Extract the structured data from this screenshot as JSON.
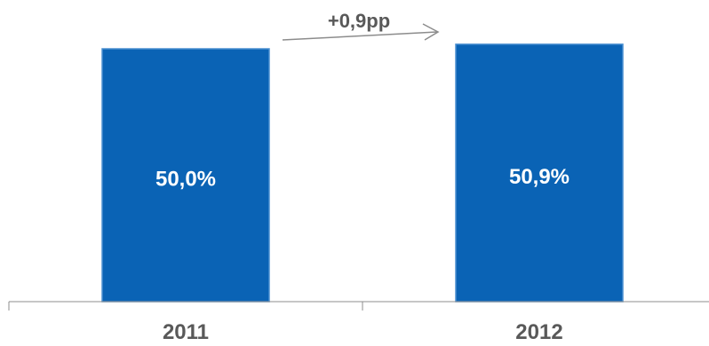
{
  "chart_data": {
    "type": "bar",
    "categories": [
      "2011",
      "2012"
    ],
    "values": [
      50.0,
      50.9
    ],
    "data_labels": [
      "50,0%",
      "50,9%"
    ],
    "annotation": "+0,9pp",
    "title": "",
    "xlabel": "",
    "ylabel": "",
    "grid": false,
    "legend": "none",
    "colors": {
      "bar": "#0A63B5",
      "bar_edge": "#4A8FD0",
      "axis": "#8C8C8C",
      "text": "#595959",
      "label": "#FFFFFF"
    }
  }
}
